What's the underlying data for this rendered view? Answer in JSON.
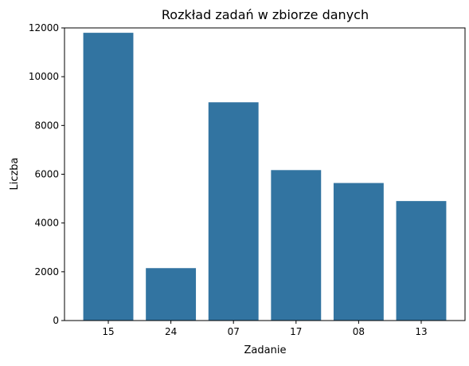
{
  "chart_data": {
    "type": "bar",
    "title": "Rozkład zadań w zbiorze danych",
    "xlabel": "Zadanie",
    "ylabel": "Liczba",
    "categories": [
      "15",
      "24",
      "07",
      "17",
      "08",
      "13"
    ],
    "values": [
      11800,
      2150,
      8950,
      6170,
      5640,
      4900
    ],
    "ylim": [
      0,
      12000
    ],
    "yticks": [
      0,
      2000,
      4000,
      6000,
      8000,
      10000,
      12000
    ],
    "bar_color": "#3274a1",
    "grid": false,
    "legend": "none"
  }
}
